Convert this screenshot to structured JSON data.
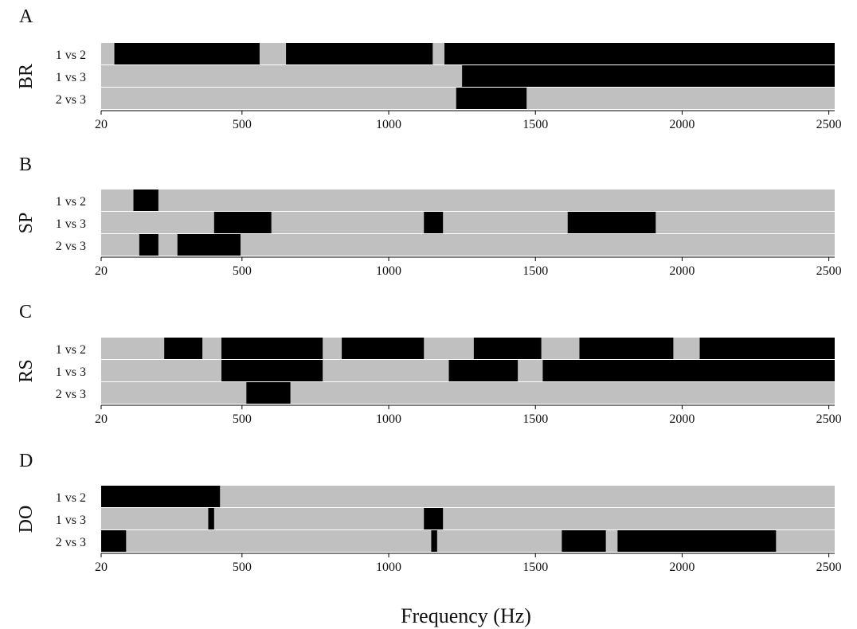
{
  "xlabel": "Frequency (Hz)",
  "colors": {
    "background": "#c0c0c0",
    "significant": "#000000",
    "separator": "#ffffff"
  },
  "chart_data": [
    {
      "type": "heatmap",
      "panel": "A",
      "group": "BR",
      "xlim": [
        20,
        2520
      ],
      "ticks": [
        20,
        500,
        1000,
        1500,
        2000,
        2500
      ],
      "rows": [
        {
          "label": "1 vs 2",
          "segments": [
            [
              65,
              560
            ],
            [
              650,
              1150
            ],
            [
              1190,
              2520
            ]
          ]
        },
        {
          "label": "1 vs 3",
          "segments": [
            [
              1250,
              2520
            ]
          ]
        },
        {
          "label": "2 vs 3",
          "segments": [
            [
              1230,
              1470
            ]
          ]
        }
      ]
    },
    {
      "type": "heatmap",
      "panel": "B",
      "group": "SP",
      "xlim": [
        20,
        2520
      ],
      "ticks": [
        20,
        500,
        1000,
        1500,
        2000,
        2500
      ],
      "rows": [
        {
          "label": "1 vs 2",
          "segments": [
            [
              130,
              215
            ]
          ]
        },
        {
          "label": "1 vs 3",
          "segments": [
            [
              405,
              600
            ],
            [
              1120,
              1185
            ],
            [
              1610,
              1910
            ]
          ]
        },
        {
          "label": "2 vs 3",
          "segments": [
            [
              150,
              215
            ],
            [
              280,
              495
            ]
          ]
        }
      ]
    },
    {
      "type": "heatmap",
      "panel": "C",
      "group": "RS",
      "xlim": [
        20,
        2520
      ],
      "ticks": [
        20,
        500,
        1000,
        1500,
        2000,
        2500
      ],
      "rows": [
        {
          "label": "1 vs 2",
          "segments": [
            [
              235,
              365
            ],
            [
              430,
              775
            ],
            [
              840,
              1120
            ],
            [
              1290,
              1520
            ],
            [
              1650,
              1970
            ],
            [
              2060,
              2520
            ]
          ]
        },
        {
          "label": "1 vs 3",
          "segments": [
            [
              430,
              775
            ],
            [
              1205,
              1440
            ],
            [
              1525,
              2520
            ]
          ]
        },
        {
          "label": "2 vs 3",
          "segments": [
            [
              515,
              665
            ]
          ]
        }
      ]
    },
    {
      "type": "heatmap",
      "panel": "D",
      "group": "DO",
      "xlim": [
        20,
        2520
      ],
      "ticks": [
        20,
        500,
        1000,
        1500,
        2000,
        2500
      ],
      "rows": [
        {
          "label": "1 vs 2",
          "segments": [
            [
              20,
              425
            ]
          ]
        },
        {
          "label": "1 vs 3",
          "segments": [
            [
              385,
              405
            ],
            [
              1120,
              1185
            ]
          ]
        },
        {
          "label": "2 vs 3",
          "segments": [
            [
              20,
              105
            ],
            [
              1145,
              1165
            ],
            [
              1590,
              1740
            ],
            [
              1780,
              2320
            ]
          ]
        }
      ]
    }
  ]
}
